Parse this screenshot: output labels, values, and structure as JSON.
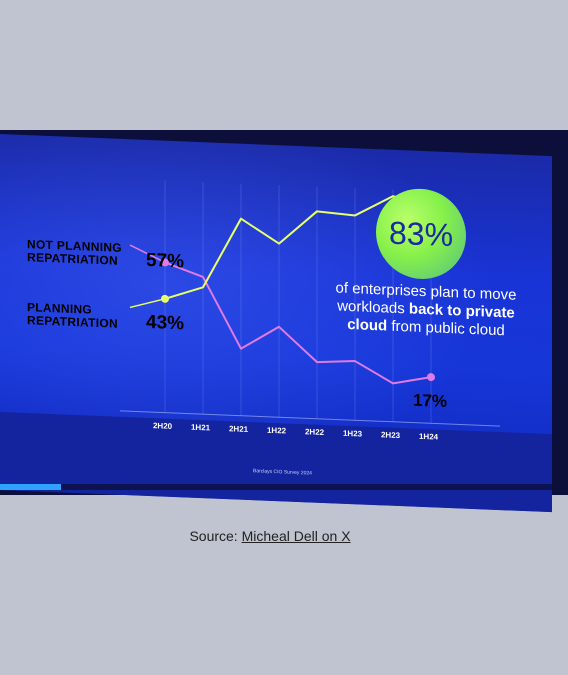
{
  "colors": {
    "page_background": "#c0c3d0",
    "screen_blue": "#1636d8",
    "not_planning": "#e07ae8",
    "planning": "#e7ff6a",
    "highlight_circle": "#86f04a",
    "progress_accent": "#2fa2ff"
  },
  "slide": {
    "headline": {
      "line1": "of enterprises plan to move",
      "line2_prefix": "workloads ",
      "line2_bold": "back to private",
      "line3_bold": "cloud",
      "line3_rest": " from public cloud"
    },
    "footnote": "Barclays CIO Survey 2024",
    "slide_progress": 0.11
  },
  "caption": {
    "prefix": "Source: ",
    "link_text": "Micheal Dell on X"
  },
  "chart_data": {
    "type": "line",
    "x": [
      "2H20",
      "1H21",
      "2H21",
      "1H22",
      "2H22",
      "1H23",
      "2H23",
      "1H24"
    ],
    "ylim": [
      0,
      100
    ],
    "grid": true,
    "series": [
      {
        "name": "NOT PLANNING REPATRIATION",
        "color": "#e07ae8",
        "values": [
          57,
          52,
          25,
          34,
          21,
          22,
          14,
          17
        ],
        "start_label": "57%",
        "end_label": "17%"
      },
      {
        "name": "PLANNING REPATRIATION",
        "color": "#e7ff6a",
        "values": [
          43,
          48,
          75,
          66,
          79,
          78,
          86,
          83
        ],
        "start_label": "43%",
        "end_label": "83%"
      }
    ]
  }
}
